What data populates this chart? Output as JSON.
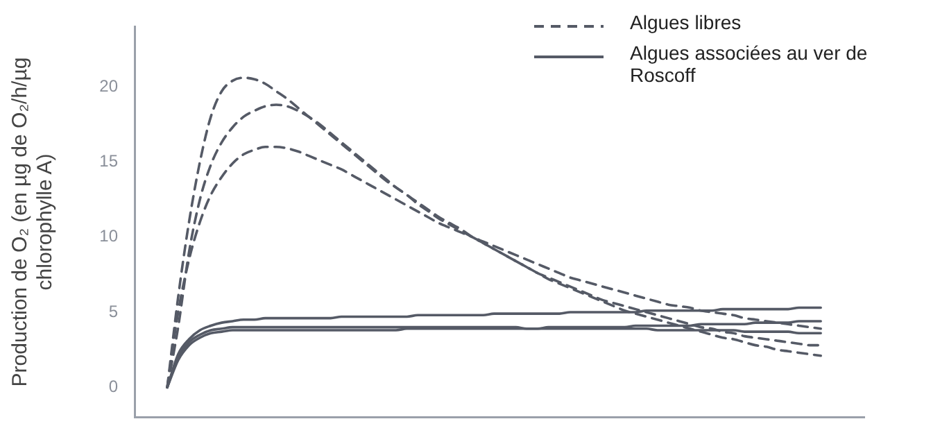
{
  "chart_data": {
    "type": "line",
    "ylabel": "Production de O₂ (en µg de O₂/h/µg chlorophylle A)",
    "categories": [
      null,
      null,
      null,
      null,
      null,
      null,
      null,
      null,
      null,
      null,
      null,
      null,
      null,
      null,
      null,
      null,
      null,
      null,
      null,
      null,
      null,
      null,
      null,
      null,
      null,
      null,
      null,
      null,
      null,
      null,
      null,
      null,
      null,
      null,
      null,
      null,
      null,
      null,
      null,
      null,
      null,
      null,
      null,
      null,
      null,
      null,
      null,
      null,
      null,
      null,
      null,
      null,
      null,
      null,
      null,
      null,
      null,
      null,
      null,
      null,
      null,
      null,
      null,
      null,
      null,
      null,
      null,
      null
    ],
    "ylim": [
      -2,
      24
    ],
    "yticks": [
      0,
      5,
      10,
      15,
      20
    ],
    "tick_labels": "y",
    "grid": false,
    "legend": "top right",
    "marker": "none",
    "series": [
      {
        "name": "Algues libres",
        "color": "#555a66",
        "line_style": "dashed",
        "values": [
          null,
          null,
          null,
          0,
          6,
          11,
          15,
          18,
          19.7,
          20.4,
          20.6,
          20.5,
          20.2,
          19.7,
          19.2,
          18.6,
          18.0,
          17.4,
          16.8,
          16.2,
          15.6,
          15.0,
          14.4,
          13.8,
          13.3,
          12.8,
          12.3,
          11.8,
          11.3,
          10.9,
          10.5,
          10.0,
          9.6,
          9.2,
          8.8,
          8.4,
          8.0,
          7.6,
          7.3,
          7.0,
          6.7,
          6.4,
          6.1,
          5.8,
          5.6,
          5.4,
          5.2,
          5.0,
          4.8,
          4.6,
          4.4,
          4.2,
          4.0,
          3.9,
          3.7,
          3.6,
          3.4,
          3.3,
          3.2,
          3.1,
          3.0,
          2.9,
          2.8,
          2.8,
          null,
          null,
          null,
          null
        ]
      },
      {
        "color": "#555a66",
        "line_style": "dashed",
        "values": [
          null,
          null,
          null,
          0,
          4,
          9,
          12.5,
          14.8,
          16.3,
          17.3,
          18.0,
          18.4,
          18.7,
          18.8,
          18.7,
          18.4,
          18.0,
          17.5,
          16.9,
          16.3,
          15.7,
          15.1,
          14.5,
          13.9,
          13.3,
          12.8,
          12.2,
          11.7,
          11.2,
          10.8,
          10.4,
          10.0,
          9.7,
          9.4,
          9.1,
          8.8,
          8.5,
          8.2,
          7.9,
          7.6,
          7.3,
          7.1,
          6.9,
          6.7,
          6.5,
          6.3,
          6.1,
          5.9,
          5.7,
          5.5,
          5.4,
          5.3,
          5.1,
          5.0,
          4.9,
          4.8,
          4.6,
          4.5,
          4.4,
          4.3,
          4.2,
          4.1,
          4.0,
          3.9,
          null,
          null,
          null,
          null
        ]
      },
      {
        "color": "#555a66",
        "line_style": "dashed",
        "values": [
          null,
          null,
          null,
          0,
          5,
          8.5,
          11,
          12.8,
          14.0,
          14.9,
          15.5,
          15.8,
          16.0,
          16.0,
          15.9,
          15.7,
          15.4,
          15.1,
          14.8,
          14.5,
          14.1,
          13.7,
          13.3,
          12.9,
          12.5,
          12.1,
          11.7,
          11.3,
          10.9,
          10.6,
          10.3,
          10.0,
          9.6,
          9.2,
          8.8,
          8.4,
          8.0,
          7.6,
          7.2,
          6.9,
          6.6,
          6.3,
          6.0,
          5.7,
          5.4,
          5.1,
          4.9,
          4.7,
          4.5,
          4.3,
          4.1,
          3.9,
          3.7,
          3.5,
          3.3,
          3.2,
          3.0,
          2.8,
          2.7,
          2.5,
          2.4,
          2.3,
          2.2,
          2.1,
          null,
          null,
          null,
          null
        ]
      },
      {
        "name": "Algues associées au ver de Roscoff",
        "color": "#555a66",
        "line_style": "solid",
        "values": [
          null,
          null,
          null,
          0,
          2.2,
          3.2,
          3.8,
          4.1,
          4.3,
          4.4,
          4.5,
          4.5,
          4.6,
          4.6,
          4.6,
          4.6,
          4.6,
          4.6,
          4.6,
          4.7,
          4.7,
          4.7,
          4.7,
          4.7,
          4.7,
          4.7,
          4.8,
          4.8,
          4.8,
          4.8,
          4.8,
          4.8,
          4.8,
          4.9,
          4.9,
          4.9,
          4.9,
          4.9,
          4.9,
          4.9,
          5.0,
          5.0,
          5.0,
          5.0,
          5.0,
          5.0,
          5.0,
          5.1,
          5.1,
          5.1,
          5.1,
          5.1,
          5.1,
          5.1,
          5.2,
          5.2,
          5.2,
          5.2,
          5.2,
          5.2,
          5.2,
          5.3,
          5.3,
          5.3,
          null,
          null,
          null,
          null
        ]
      },
      {
        "color": "#555a66",
        "line_style": "solid",
        "values": [
          null,
          null,
          null,
          0,
          1.8,
          2.8,
          3.3,
          3.6,
          3.7,
          3.8,
          3.8,
          3.8,
          3.8,
          3.8,
          3.8,
          3.8,
          3.8,
          3.8,
          3.8,
          3.8,
          3.8,
          3.8,
          3.8,
          3.8,
          3.8,
          3.9,
          3.9,
          3.9,
          3.9,
          3.9,
          3.9,
          3.9,
          3.9,
          3.9,
          3.9,
          3.9,
          3.9,
          3.9,
          4.0,
          4.0,
          4.0,
          4.0,
          4.0,
          4.0,
          4.0,
          4.0,
          4.1,
          4.1,
          4.1,
          4.1,
          4.1,
          4.1,
          4.2,
          4.2,
          4.2,
          4.2,
          4.2,
          4.3,
          4.3,
          4.3,
          4.3,
          4.4,
          4.4,
          4.4,
          null,
          null,
          null,
          null
        ]
      },
      {
        "color": "#555a66",
        "line_style": "solid",
        "values": [
          null,
          null,
          null,
          0,
          2.0,
          3.0,
          3.5,
          3.8,
          3.9,
          4.0,
          4.0,
          4.0,
          4.0,
          4.0,
          4.0,
          4.0,
          4.0,
          4.0,
          4.0,
          4.0,
          4.0,
          4.0,
          4.0,
          4.0,
          4.0,
          4.0,
          4.0,
          4.0,
          4.0,
          4.0,
          4.0,
          4.0,
          4.0,
          4.0,
          4.0,
          4.0,
          3.9,
          3.9,
          3.9,
          3.9,
          3.9,
          3.9,
          3.9,
          3.9,
          3.9,
          3.9,
          3.9,
          3.9,
          3.8,
          3.8,
          3.8,
          3.8,
          3.8,
          3.8,
          3.8,
          3.8,
          3.7,
          3.7,
          3.7,
          3.7,
          3.7,
          3.6,
          3.6,
          3.6,
          null,
          null,
          null,
          null
        ]
      }
    ]
  }
}
